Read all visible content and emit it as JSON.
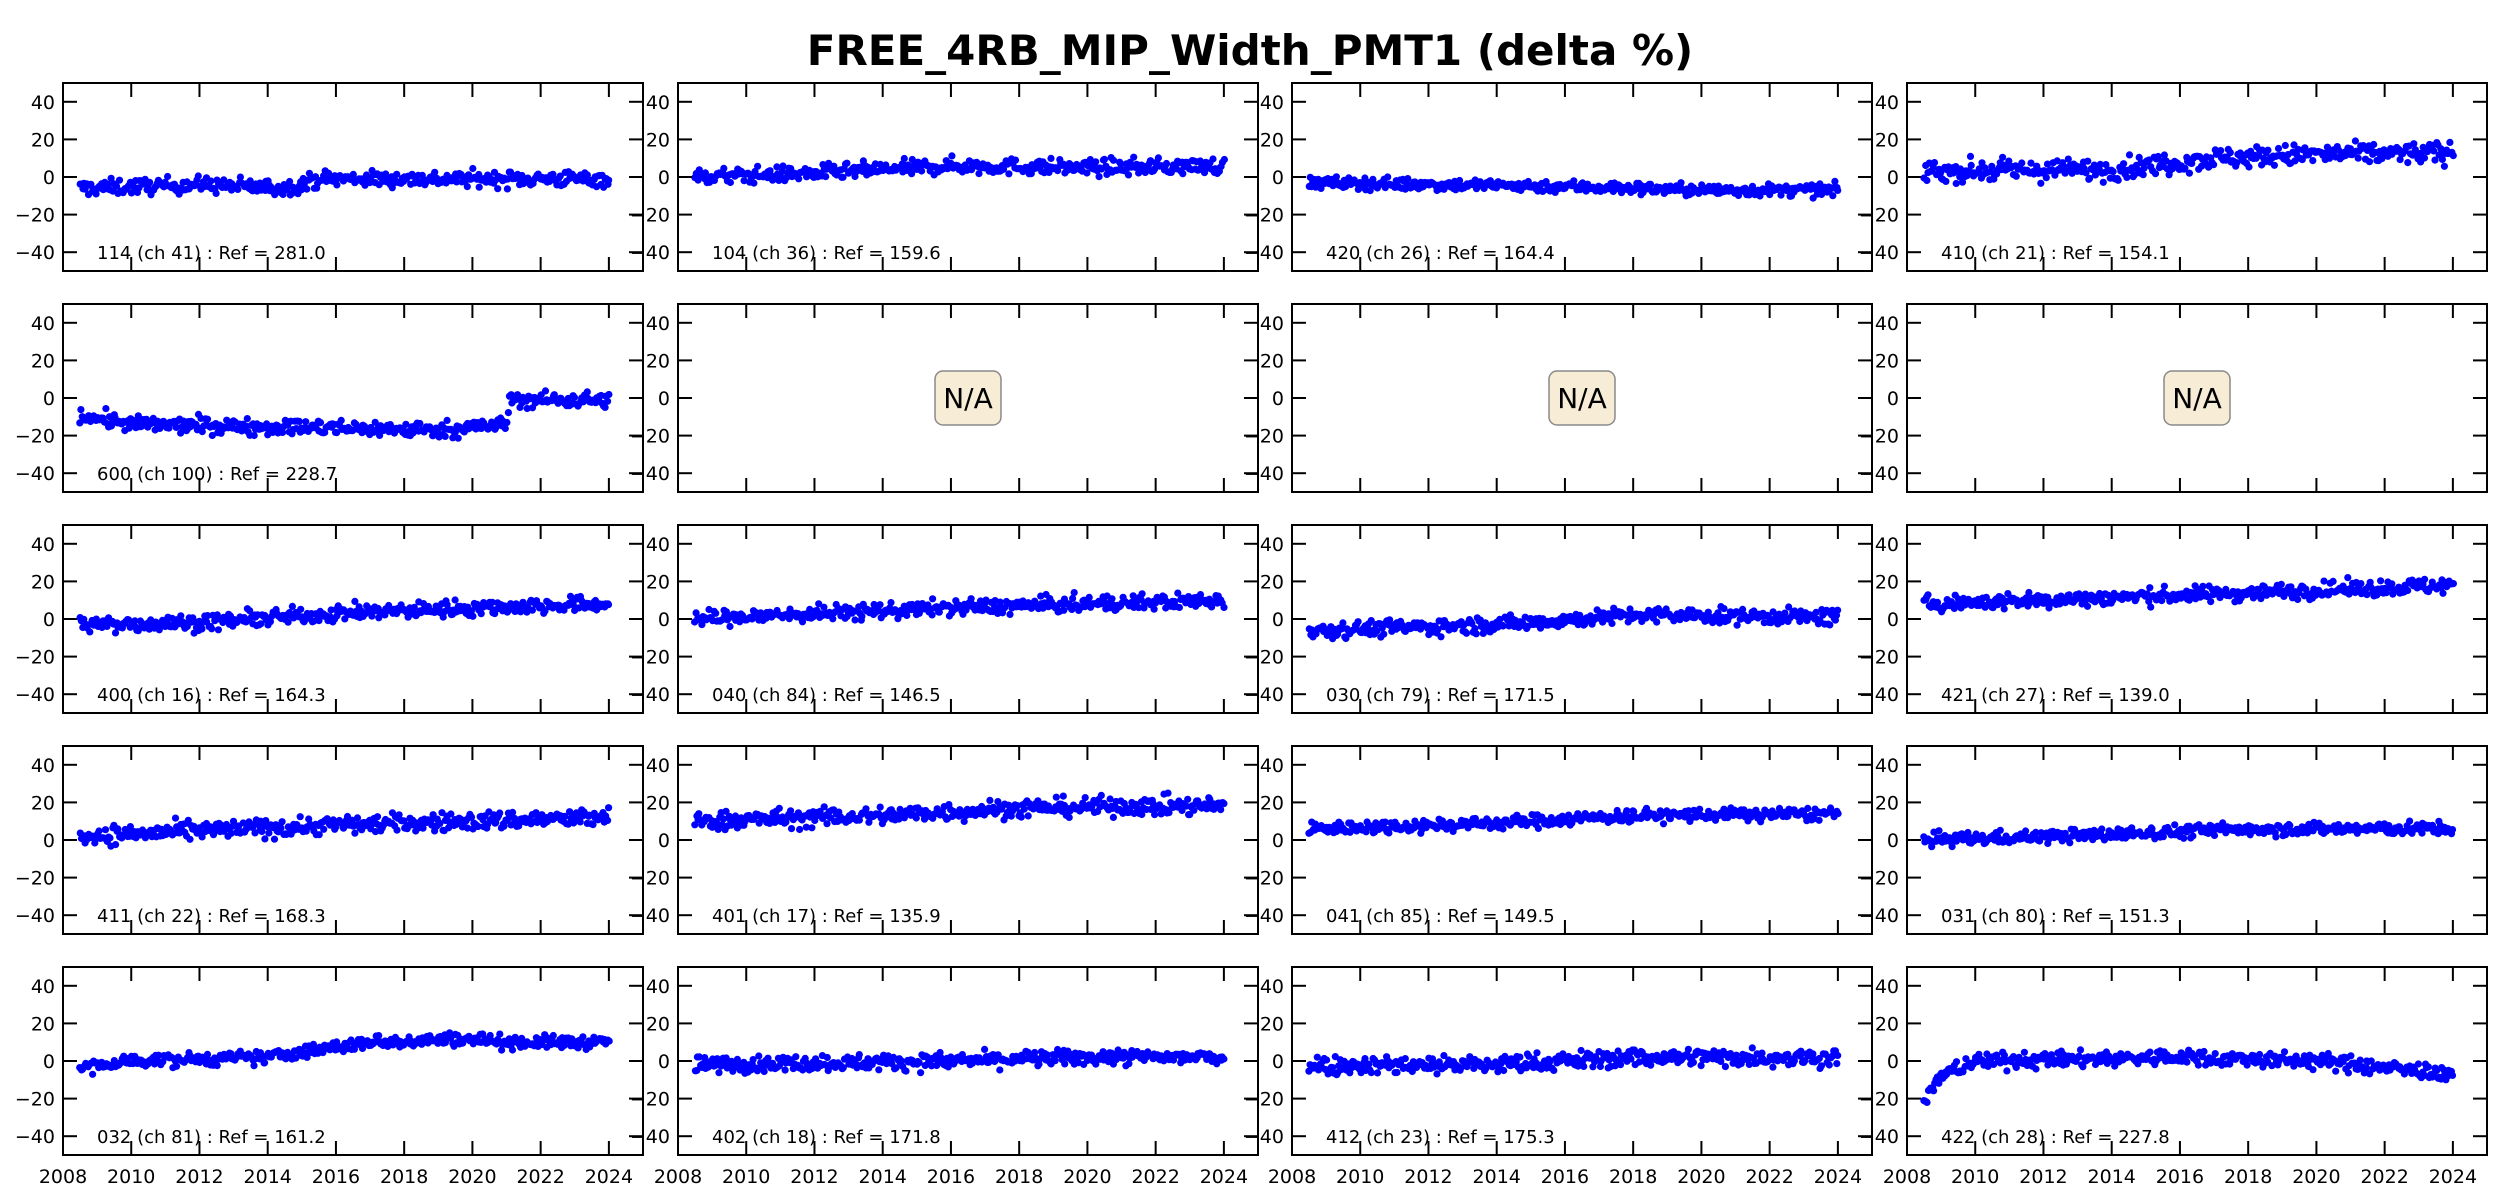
{
  "chart_data": {
    "type": "scatter",
    "title": "FREE_4RB_MIP_Width_PMT1 (delta %)",
    "xlim": [
      2008,
      2025
    ],
    "ylim": [
      -50,
      50
    ],
    "xticks": [
      "2008",
      "2010",
      "2012",
      "2014",
      "2016",
      "2018",
      "2020",
      "2022",
      "2024"
    ],
    "yticks": [
      "40",
      "20",
      "0",
      "−20",
      "−40"
    ],
    "marker_color": "#0000ff",
    "na_text": "N/A",
    "na_box_color": "#f7ecd6",
    "layout": "5x4 grid",
    "panels": [
      {
        "label": "114 (ch 41) : Ref = 281.0",
        "trend": [
          [
            2008.5,
            -6
          ],
          [
            2012,
            -4
          ],
          [
            2014.5,
            -6
          ],
          [
            2015.5,
            -1
          ],
          [
            2018,
            -1
          ],
          [
            2024,
            -1
          ]
        ],
        "spread": 3
      },
      {
        "label": "104 (ch 36) : Ref = 159.6",
        "trend": [
          [
            2008.5,
            0
          ],
          [
            2012,
            2
          ],
          [
            2016,
            6
          ],
          [
            2020,
            5
          ],
          [
            2024,
            6
          ]
        ],
        "spread": 3
      },
      {
        "label": "420 (ch 26) : Ref = 164.4",
        "trend": [
          [
            2008.5,
            -3
          ],
          [
            2016,
            -5
          ],
          [
            2020,
            -7
          ],
          [
            2024,
            -7
          ]
        ],
        "spread": 2.3
      },
      {
        "label": "410 (ch 21) : Ref = 154.1",
        "trend": [
          [
            2008.5,
            3
          ],
          [
            2014,
            4
          ],
          [
            2017,
            10
          ],
          [
            2020,
            12
          ],
          [
            2024,
            13
          ]
        ],
        "spread": 4
      },
      {
        "label": "600 (ch 100) : Ref = 228.7",
        "trend": [
          [
            2008.5,
            -9
          ],
          [
            2010,
            -14
          ],
          [
            2016,
            -16
          ],
          [
            2019,
            -17
          ],
          [
            2021,
            -14
          ],
          [
            2021.1,
            -1
          ],
          [
            2024,
            -1
          ]
        ],
        "spread": 3
      },
      {
        "na": true
      },
      {
        "na": true
      },
      {
        "na": true
      },
      {
        "label": "400 (ch 16) : Ref = 164.3",
        "trend": [
          [
            2008.5,
            -3
          ],
          [
            2012,
            -2
          ],
          [
            2016,
            3
          ],
          [
            2020,
            6
          ],
          [
            2024,
            8
          ]
        ],
        "spread": 3
      },
      {
        "label": "040 (ch 84) : Ref = 146.5",
        "trend": [
          [
            2008.5,
            0
          ],
          [
            2016,
            6
          ],
          [
            2020,
            8
          ],
          [
            2024,
            10
          ]
        ],
        "spread": 3
      },
      {
        "label": "030 (ch 79) : Ref = 171.5",
        "trend": [
          [
            2008.5,
            -6
          ],
          [
            2014,
            -3
          ],
          [
            2018,
            2
          ],
          [
            2024,
            1
          ]
        ],
        "spread": 3
      },
      {
        "label": "421 (ch 27) : Ref = 139.0",
        "trend": [
          [
            2008.5,
            8
          ],
          [
            2012,
            10
          ],
          [
            2018,
            14
          ],
          [
            2024,
            18
          ]
        ],
        "spread": 3
      },
      {
        "label": "411 (ch 22) : Ref = 168.3",
        "trend": [
          [
            2008.5,
            2
          ],
          [
            2016,
            8
          ],
          [
            2024,
            12
          ]
        ],
        "spread": 3.5
      },
      {
        "label": "401 (ch 17) : Ref = 135.9",
        "trend": [
          [
            2008.5,
            10
          ],
          [
            2014,
            13
          ],
          [
            2018,
            17
          ],
          [
            2021,
            18
          ],
          [
            2024,
            18
          ]
        ],
        "spread": 3.5
      },
      {
        "label": "041 (ch 85) : Ref = 149.5",
        "trend": [
          [
            2008.5,
            6
          ],
          [
            2014,
            9
          ],
          [
            2018,
            13
          ],
          [
            2024,
            14
          ]
        ],
        "spread": 2.5
      },
      {
        "label": "031 (ch 80) : Ref = 151.3",
        "trend": [
          [
            2008.5,
            0
          ],
          [
            2014,
            3
          ],
          [
            2018,
            6
          ],
          [
            2024,
            6
          ]
        ],
        "spread": 2.5
      },
      {
        "label": "032 (ch 81) : Ref = 161.2",
        "trend": [
          [
            2008.5,
            -4
          ],
          [
            2010,
            0
          ],
          [
            2014,
            2
          ],
          [
            2017,
            10
          ],
          [
            2020,
            12
          ],
          [
            2021,
            10
          ],
          [
            2024,
            10
          ]
        ],
        "spread": 2.5
      },
      {
        "label": "402 (ch 18) : Ref = 171.8",
        "trend": [
          [
            2008.5,
            -2
          ],
          [
            2016,
            0
          ],
          [
            2020,
            2
          ],
          [
            2024,
            2
          ]
        ],
        "spread": 3
      },
      {
        "label": "412 (ch 23) : Ref = 175.3",
        "trend": [
          [
            2008.5,
            -2
          ],
          [
            2014,
            -2
          ],
          [
            2018,
            2
          ],
          [
            2024,
            2
          ]
        ],
        "spread": 3.5
      },
      {
        "label": "422 (ch 28) : Ref = 227.8",
        "trend": [
          [
            2008.5,
            -22
          ],
          [
            2009,
            -8
          ],
          [
            2010,
            0
          ],
          [
            2016,
            2
          ],
          [
            2020,
            0
          ],
          [
            2024,
            -7
          ]
        ],
        "spread": 3
      }
    ]
  }
}
